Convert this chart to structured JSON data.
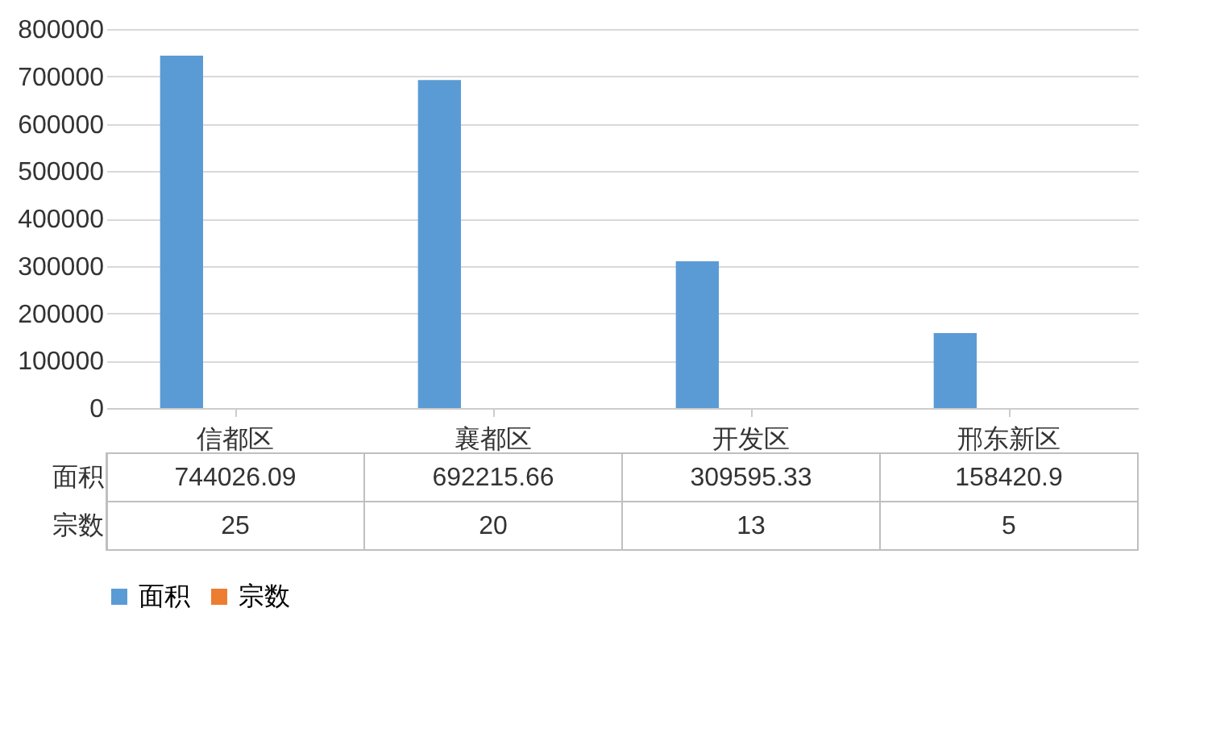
{
  "chart_data": {
    "type": "bar",
    "categories": [
      "信都区",
      "襄都区",
      "开发区",
      "邢东新区"
    ],
    "series": [
      {
        "name": "面积",
        "color": "#5b9bd5",
        "values": [
          744026.09,
          692215.66,
          309595.33,
          158420.9
        ]
      },
      {
        "name": "宗数",
        "color": "#ed7d31",
        "values": [
          25,
          20,
          13,
          5
        ]
      }
    ],
    "ylim": [
      0,
      800000
    ],
    "yticks": [
      0,
      100000,
      200000,
      300000,
      400000,
      500000,
      600000,
      700000,
      800000
    ],
    "grid": "y",
    "legend": "bottom",
    "data_labels": true
  }
}
